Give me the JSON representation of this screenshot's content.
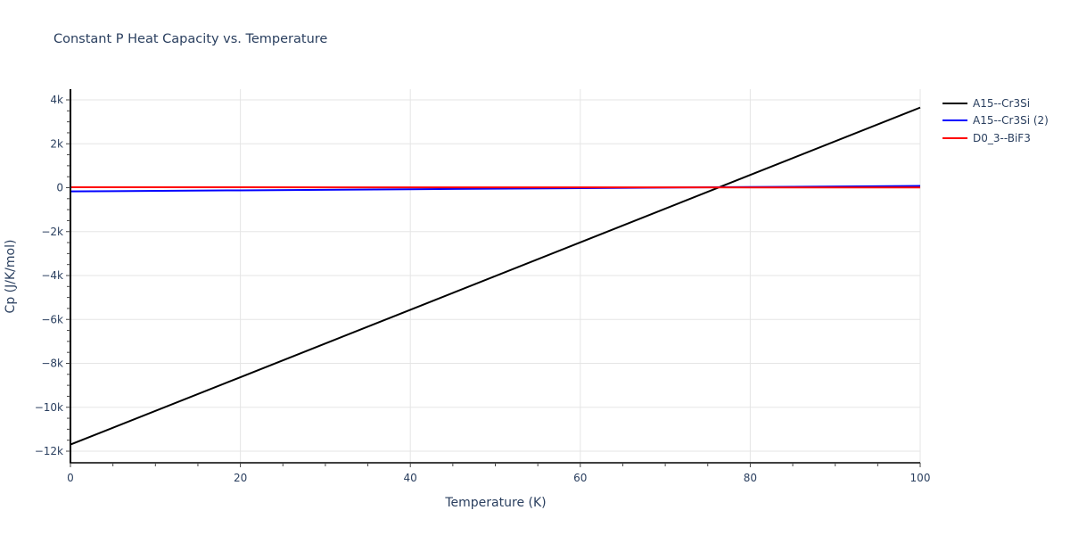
{
  "chart_data": {
    "type": "line",
    "title": "Constant P Heat Capacity vs. Temperature",
    "xlabel": "Temperature (K)",
    "ylabel": "Cp (J/K/mol)",
    "xlim": [
      0,
      100
    ],
    "ylim": [
      -12500,
      4500
    ],
    "x_ticks": [
      0,
      20,
      40,
      60,
      80,
      100
    ],
    "x_tick_labels": [
      "0",
      "20",
      "40",
      "60",
      "80",
      "100"
    ],
    "y_ticks": [
      4000,
      2000,
      0,
      -2000,
      -4000,
      -6000,
      -8000,
      -10000,
      -12000
    ],
    "y_tick_labels": [
      "4k",
      "2k",
      "0",
      "−2k",
      "−4k",
      "−6k",
      "−8k",
      "−10k",
      "−12k"
    ],
    "grid": true,
    "legend_position": "right-top",
    "x": [
      0,
      20,
      40,
      60,
      80,
      100
    ],
    "series": [
      {
        "name": "A15--Cr3Si",
        "color": "#000000",
        "values": [
          -11700,
          -8630,
          -5560,
          -2490,
          580,
          3650
        ]
      },
      {
        "name": "A15--Cr3Si (2)",
        "color": "#0000ff",
        "values": [
          -170,
          -120,
          -70,
          -20,
          30,
          80
        ]
      },
      {
        "name": "D0_3--BiF3",
        "color": "#ff0000",
        "values": [
          20,
          18,
          16,
          14,
          12,
          10
        ]
      }
    ]
  }
}
